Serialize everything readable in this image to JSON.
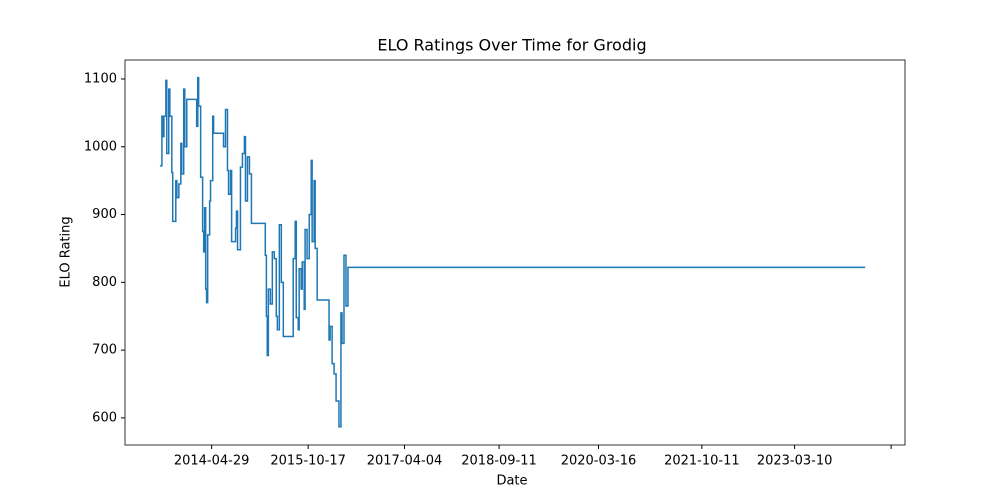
{
  "chart_data": {
    "type": "line",
    "drawstyle": "steps-post",
    "title": "ELO Ratings Over Time for Grodig",
    "xlabel": "Date",
    "ylabel": "ELO Rating",
    "color": "#1f77b4",
    "x": [
      "2013-07-16",
      "2013-07-27",
      "2013-08-01",
      "2013-08-07",
      "2013-08-18",
      "2013-08-23",
      "2013-09-03",
      "2013-09-09",
      "2013-09-20",
      "2013-09-25",
      "2013-10-12",
      "2013-10-18",
      "2013-10-29",
      "2013-11-09",
      "2013-11-14",
      "2013-11-25",
      "2013-12-01",
      "2013-12-12",
      "2014-02-05",
      "2014-02-11",
      "2014-02-16",
      "2014-02-27",
      "2014-03-10",
      "2014-03-16",
      "2014-03-21",
      "2014-03-27",
      "2014-04-01",
      "2014-04-07",
      "2014-04-18",
      "2014-04-23",
      "2014-05-05",
      "2014-05-10",
      "2014-07-04",
      "2014-07-15",
      "2014-07-26",
      "2014-08-01",
      "2014-08-12",
      "2014-08-18",
      "2014-09-09",
      "2014-09-14",
      "2014-09-20",
      "2014-10-06",
      "2014-10-17",
      "2014-10-28",
      "2014-11-03",
      "2014-11-14",
      "2014-11-25",
      "2014-12-06",
      "2015-02-21",
      "2015-02-27",
      "2015-03-04",
      "2015-03-10",
      "2015-03-21",
      "2015-04-01",
      "2015-04-12",
      "2015-04-23",
      "2015-04-29",
      "2015-05-10",
      "2015-05-21",
      "2015-06-01",
      "2015-07-26",
      "2015-08-06",
      "2015-08-12",
      "2015-08-23",
      "2015-08-28",
      "2015-09-08",
      "2015-09-14",
      "2015-09-25",
      "2015-09-30",
      "2015-10-11",
      "2015-10-23",
      "2015-11-03",
      "2015-11-08",
      "2015-11-19",
      "2015-11-25",
      "2015-12-06",
      "2016-02-10",
      "2016-02-16",
      "2016-02-27",
      "2016-03-09",
      "2016-03-20",
      "2016-04-05",
      "2016-04-16",
      "2016-04-22",
      "2016-05-03",
      "2016-05-14",
      "2016-05-25",
      "2024-04-05"
    ],
    "values": [
      972,
      1045,
      1015,
      1045,
      1098,
      990,
      1085,
      1045,
      962,
      890,
      950,
      925,
      945,
      1005,
      960,
      1085,
      1000,
      1070,
      1030,
      1102,
      1060,
      955,
      875,
      845,
      910,
      790,
      770,
      870,
      920,
      950,
      1045,
      1020,
      1000,
      1055,
      965,
      930,
      965,
      860,
      880,
      905,
      848,
      970,
      990,
      1015,
      920,
      985,
      960,
      887,
      840,
      750,
      692,
      790,
      768,
      845,
      835,
      750,
      730,
      885,
      800,
      720,
      835,
      890,
      748,
      730,
      820,
      790,
      830,
      760,
      878,
      835,
      900,
      980,
      860,
      950,
      850,
      774,
      715,
      735,
      680,
      665,
      625,
      587,
      755,
      710,
      840,
      765,
      822,
      822
    ],
    "xlim": [
      "2013-01-03",
      "2024-11-12"
    ],
    "xticks": [
      "2014-04-29",
      "2015-10-17",
      "2017-04-04",
      "2018-09-11",
      "2020-03-16",
      "2021-10-11",
      "2023-03-10",
      {
        "value": "2024-08-27",
        "label": null
      }
    ],
    "ylim": [
      560,
      1128
    ],
    "yticks": [
      600,
      700,
      800,
      900,
      1000,
      1100
    ]
  }
}
